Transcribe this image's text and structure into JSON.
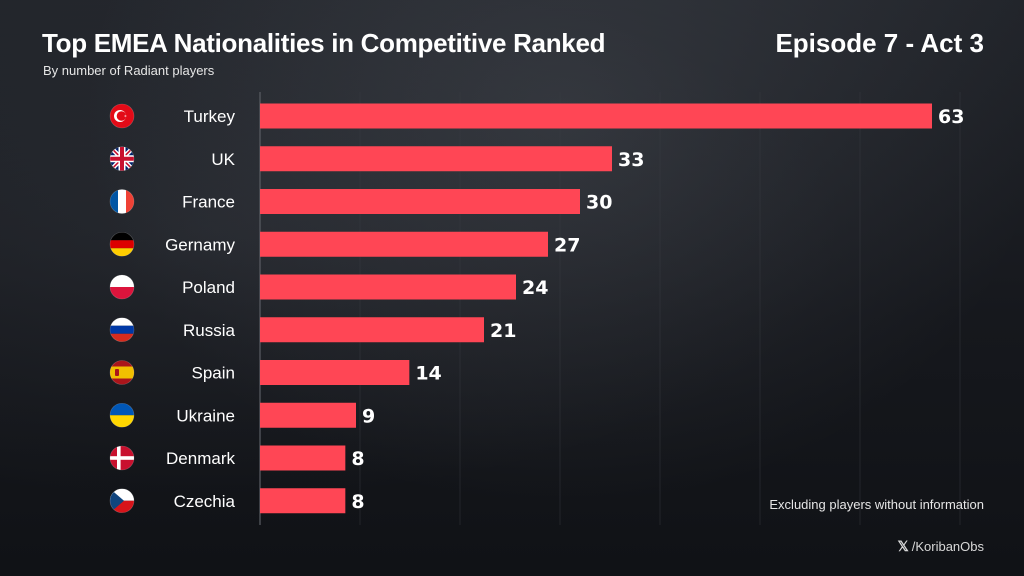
{
  "header": {
    "title": "Top EMEA Nationalities in Competitive Ranked",
    "subtitle": "By number of Radiant players",
    "episode": "Episode 7 - Act 3"
  },
  "footer": {
    "note": "Excluding players without information",
    "handle_icon": "x-logo-icon",
    "handle": "/KoribanObs"
  },
  "colors": {
    "bar": "#ff4655",
    "background": "#16181d",
    "grid": "#3a3d44",
    "text": "#ffffff"
  },
  "chart_data": {
    "type": "bar",
    "orientation": "horizontal",
    "title": "Top EMEA Nationalities in Competitive Ranked",
    "subtitle": "By number of Radiant players",
    "xlabel": "",
    "ylabel": "",
    "xlim": [
      0,
      63
    ],
    "grid": true,
    "categories": [
      "Turkey",
      "UK",
      "France",
      "Gernamy",
      "Poland",
      "Russia",
      "Spain",
      "Ukraine",
      "Denmark",
      "Czechia"
    ],
    "values": [
      63,
      33,
      30,
      27,
      24,
      21,
      14,
      9,
      8,
      8
    ],
    "flags": [
      "turkey-flag-icon",
      "uk-flag-icon",
      "france-flag-icon",
      "germany-flag-icon",
      "poland-flag-icon",
      "russia-flag-icon",
      "spain-flag-icon",
      "ukraine-flag-icon",
      "denmark-flag-icon",
      "czechia-flag-icon"
    ]
  }
}
